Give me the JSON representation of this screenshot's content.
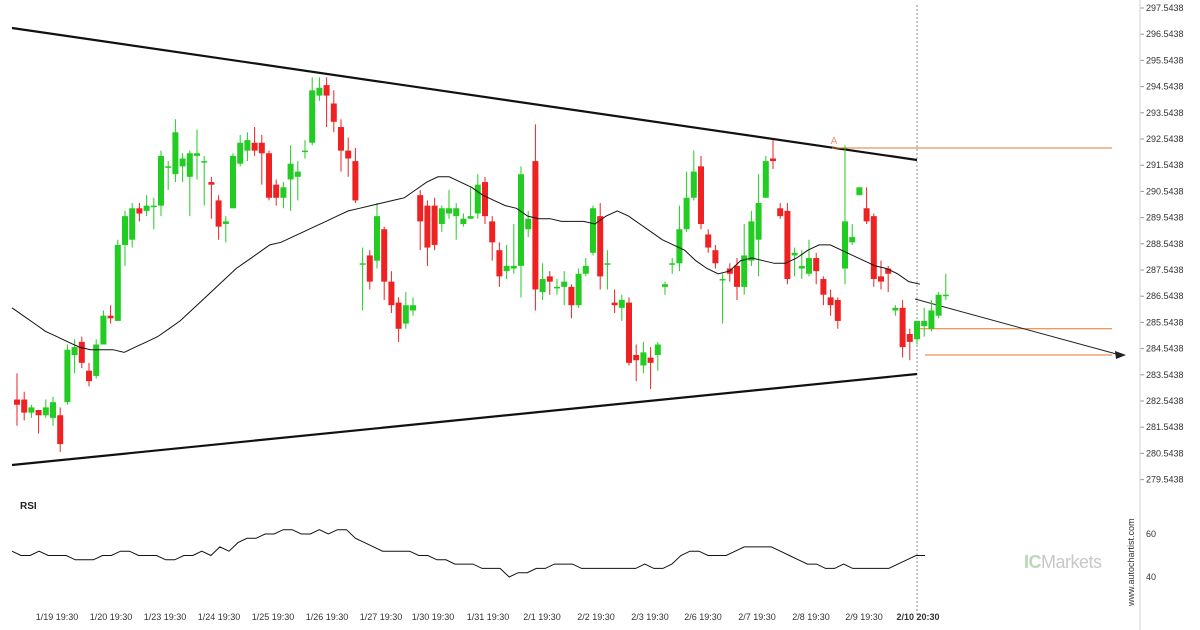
{
  "chart_data": {
    "type": "candlestick",
    "y_ticks": [
      "297.5438",
      "296.5438",
      "295.5438",
      "294.5438",
      "293.5438",
      "292.5438",
      "291.5438",
      "290.5438",
      "289.5438",
      "288.5438",
      "287.5438",
      "286.5438",
      "285.5438",
      "284.5438",
      "283.5438",
      "282.5438",
      "281.5438",
      "280.5438",
      "279.5438"
    ],
    "ylim": [
      279.0438,
      297.5438
    ],
    "x_ticks": [
      "1/19 19:30",
      "1/20 19:30",
      "1/23 19:30",
      "1/24 19:30",
      "1/25 19:30",
      "1/26 19:30",
      "1/27 19:30",
      "1/30 19:30",
      "1/31 19:30",
      "2/1 19:30",
      "2/2 19:30",
      "2/3 19:30",
      "2/6 19:30",
      "2/7 19:30",
      "2/8 19:30",
      "2/9 19:30",
      "2/10 20:30"
    ],
    "bull_color": "#22cc22",
    "bear_color": "#ee2222",
    "candles": [
      [
        282.6,
        282.4,
        283.6,
        281.6
      ],
      [
        282.6,
        282.1,
        282.9,
        281.8
      ],
      [
        282.1,
        282.3,
        282.4,
        281.9
      ],
      [
        282.2,
        282.0,
        282.2,
        281.3
      ],
      [
        282.0,
        282.3,
        282.6,
        281.9
      ],
      [
        281.9,
        282.5,
        282.7,
        281.6
      ],
      [
        282.0,
        280.9,
        282.3,
        280.6
      ],
      [
        282.5,
        284.5,
        284.7,
        282.4
      ],
      [
        284.3,
        284.6,
        284.9,
        283.6
      ],
      [
        284.8,
        284.0,
        285.0,
        283.8
      ],
      [
        283.7,
        283.3,
        284.0,
        283.1
      ],
      [
        283.5,
        284.7,
        284.9,
        283.4
      ],
      [
        284.7,
        285.8,
        286.0,
        284.7
      ],
      [
        285.8,
        285.7,
        286.2,
        285.5
      ],
      [
        285.6,
        288.5,
        288.7,
        285.6
      ],
      [
        288.5,
        289.6,
        289.8,
        287.7
      ],
      [
        288.7,
        289.9,
        290.1,
        288.4
      ],
      [
        289.9,
        289.7,
        290.1,
        289.4
      ],
      [
        289.8,
        290.0,
        290.4,
        289.6
      ],
      [
        290.0,
        290.0,
        290.3,
        289.1
      ],
      [
        290.0,
        291.9,
        292.1,
        289.6
      ],
      [
        291.5,
        291.5,
        291.7,
        290.6
      ],
      [
        291.2,
        292.8,
        293.3,
        290.9
      ],
      [
        291.5,
        291.8,
        292.0,
        290.9
      ],
      [
        291.1,
        292.0,
        292.1,
        289.6
      ],
      [
        291.9,
        292.0,
        292.9,
        291.0
      ],
      [
        291.7,
        291.7,
        291.9,
        290.0
      ],
      [
        290.9,
        290.8,
        291.1,
        289.5
      ],
      [
        290.2,
        289.2,
        290.4,
        288.7
      ],
      [
        289.3,
        289.4,
        289.6,
        288.6
      ],
      [
        289.9,
        291.9,
        292.0,
        289.9
      ],
      [
        291.6,
        292.4,
        292.7,
        291.5
      ],
      [
        292.1,
        292.5,
        292.8,
        291.7
      ],
      [
        292.4,
        292.1,
        293.0,
        291.9
      ],
      [
        292.4,
        292.0,
        292.7,
        290.8
      ],
      [
        292.0,
        290.3,
        292.1,
        290.2
      ],
      [
        290.8,
        290.3,
        291.0,
        290.0
      ],
      [
        290.3,
        290.7,
        290.9,
        289.9
      ],
      [
        291.0,
        291.6,
        292.3,
        289.8
      ],
      [
        291.1,
        291.3,
        291.7,
        290.2
      ],
      [
        292.1,
        292.1,
        292.5,
        291.8
      ],
      [
        292.4,
        294.4,
        294.9,
        292.3
      ],
      [
        294.2,
        294.5,
        294.9,
        294.0
      ],
      [
        294.6,
        294.2,
        294.9,
        293.0
      ],
      [
        293.9,
        293.2,
        294.4,
        292.8
      ],
      [
        293.0,
        292.1,
        293.3,
        291.3
      ],
      [
        292.1,
        291.8,
        292.6,
        291.1
      ],
      [
        291.7,
        290.2,
        292.2,
        290.1
      ],
      [
        287.8,
        287.8,
        288.4,
        286.0
      ],
      [
        288.1,
        287.1,
        288.3,
        286.8
      ],
      [
        287.9,
        289.6,
        290.1,
        287.6
      ],
      [
        289.1,
        287.1,
        289.2,
        286.4
      ],
      [
        287.1,
        286.2,
        287.5,
        285.9
      ],
      [
        286.3,
        285.3,
        286.5,
        284.8
      ],
      [
        285.5,
        286.2,
        286.7,
        285.3
      ],
      [
        286.0,
        286.2,
        286.5,
        285.8
      ],
      [
        290.4,
        289.4,
        290.6,
        288.3
      ],
      [
        290.0,
        288.4,
        290.2,
        287.7
      ],
      [
        290.0,
        288.5,
        290.3,
        288.3
      ],
      [
        289.3,
        289.9,
        290.0,
        289.0
      ],
      [
        289.7,
        289.9,
        290.6,
        289.5
      ],
      [
        289.6,
        289.9,
        290.1,
        288.7
      ],
      [
        289.3,
        289.5,
        289.7,
        289.2
      ],
      [
        289.5,
        289.6,
        290.7,
        289.5
      ],
      [
        289.7,
        290.8,
        291.2,
        289.5
      ],
      [
        290.9,
        289.6,
        291.1,
        289.3
      ],
      [
        289.4,
        288.6,
        289.6,
        287.9
      ],
      [
        288.3,
        287.3,
        288.6,
        286.9
      ],
      [
        287.5,
        287.7,
        288.5,
        287.2
      ],
      [
        287.6,
        287.7,
        289.3,
        287.4
      ],
      [
        287.7,
        291.2,
        291.5,
        286.5
      ],
      [
        289.1,
        289.5,
        289.8,
        288.8
      ],
      [
        291.7,
        286.8,
        293.1,
        286.0
      ],
      [
        286.7,
        287.2,
        287.8,
        286.4
      ],
      [
        287.3,
        287.1,
        287.5,
        286.6
      ],
      [
        286.9,
        286.9,
        287.2,
        286.6
      ],
      [
        286.9,
        287.1,
        287.5,
        286.2
      ],
      [
        286.9,
        286.2,
        287.0,
        285.7
      ],
      [
        286.2,
        287.4,
        287.6,
        286.1
      ],
      [
        287.4,
        287.7,
        288.0,
        287.3
      ],
      [
        288.2,
        289.9,
        290.0,
        288.1
      ],
      [
        289.6,
        287.3,
        290.1,
        286.8
      ],
      [
        287.8,
        287.8,
        288.3,
        286.8
      ],
      [
        286.3,
        286.2,
        286.8,
        285.9
      ],
      [
        286.1,
        286.4,
        286.6,
        285.6
      ],
      [
        286.3,
        284.0,
        286.5,
        283.9
      ],
      [
        284.3,
        284.1,
        284.7,
        283.3
      ],
      [
        283.9,
        284.4,
        284.8,
        283.6
      ],
      [
        284.2,
        284.0,
        284.6,
        283.0
      ],
      [
        284.3,
        284.7,
        284.8,
        283.7
      ],
      [
        286.9,
        287.0,
        287.1,
        286.6
      ],
      [
        287.8,
        287.8,
        288.0,
        287.4
      ],
      [
        287.8,
        289.1,
        290.0,
        287.5
      ],
      [
        289.1,
        290.3,
        291.3,
        289.0
      ],
      [
        290.3,
        291.3,
        292.1,
        290.2
      ],
      [
        291.5,
        289.3,
        291.9,
        289.1
      ],
      [
        288.9,
        288.4,
        289.1,
        288.2
      ],
      [
        288.3,
        287.8,
        288.5,
        287.6
      ],
      [
        287.2,
        287.2,
        287.4,
        285.5
      ],
      [
        287.6,
        287.4,
        287.8,
        287.1
      ],
      [
        287.7,
        286.9,
        288.0,
        286.4
      ],
      [
        286.9,
        288.1,
        289.3,
        286.6
      ],
      [
        287.9,
        289.4,
        289.8,
        287.7
      ],
      [
        288.7,
        290.1,
        291.2,
        287.3
      ],
      [
        290.3,
        291.7,
        291.9,
        290.3
      ],
      [
        291.8,
        291.7,
        292.5,
        291.4
      ],
      [
        289.9,
        289.6,
        290.1,
        289.5
      ],
      [
        289.8,
        287.2,
        290.1,
        287.0
      ],
      [
        288.1,
        288.2,
        288.4,
        287.3
      ],
      [
        287.6,
        287.7,
        288.3,
        287.2
      ],
      [
        287.4,
        288.0,
        288.7,
        287.3
      ],
      [
        288.0,
        287.5,
        288.2,
        287.0
      ],
      [
        287.2,
        286.6,
        287.3,
        286.2
      ],
      [
        286.5,
        286.2,
        286.8,
        285.8
      ],
      [
        286.4,
        285.6,
        286.5,
        285.3
      ],
      [
        287.6,
        289.4,
        292.3,
        287.0
      ],
      [
        288.6,
        288.8,
        289.3,
        288.5
      ],
      [
        290.4,
        290.7,
        290.7,
        290.5
      ],
      [
        289.9,
        289.4,
        290.7,
        289.3
      ],
      [
        289.6,
        287.2,
        289.7,
        286.9
      ],
      [
        287.3,
        287.1,
        287.9,
        286.8
      ],
      [
        287.6,
        287.4,
        287.7,
        286.7
      ],
      [
        286.0,
        286.1,
        286.2,
        285.8
      ],
      [
        286.1,
        284.6,
        286.4,
        284.2
      ],
      [
        285.1,
        284.8,
        285.3,
        284.1
      ],
      [
        284.9,
        285.6,
        285.6,
        284.7
      ],
      [
        285.4,
        285.6,
        286.1,
        285.0
      ],
      [
        285.3,
        286.0,
        286.4,
        285.2
      ],
      [
        285.8,
        286.6,
        286.7,
        285.7
      ],
      [
        286.6,
        286.6,
        287.4,
        286.4
      ]
    ],
    "ma_points": [
      [
        286.1,
        285.8,
        285.5,
        285.2,
        285.0,
        284.8,
        284.6,
        284.5,
        284.5,
        284.5,
        284.4,
        284.6,
        284.8,
        285.0,
        285.3,
        285.6,
        286.0,
        286.4,
        286.8,
        287.2,
        287.6,
        287.9,
        288.2,
        288.5,
        288.6,
        288.8,
        289.0,
        289.2,
        289.4,
        289.6,
        289.8,
        289.9,
        290.0,
        290.1,
        290.2,
        290.3,
        290.6,
        290.9,
        291.1,
        291.1,
        290.9,
        290.7,
        290.4,
        290.2,
        290.0,
        289.9,
        289.6,
        289.5,
        289.5,
        289.4,
        289.4,
        289.4,
        289.3,
        289.6,
        289.8,
        289.6,
        289.3,
        289.0,
        288.7,
        288.5,
        288.3,
        287.9,
        287.6,
        287.4,
        287.5,
        287.9,
        288.0,
        287.9,
        287.8,
        287.8,
        288.0,
        288.3,
        288.5,
        288.5,
        288.3,
        288.1,
        287.9,
        287.7,
        287.6,
        287.4,
        287.1,
        287.0
      ]
    ],
    "annotations": {
      "point_label": "A",
      "resistance_line": [
        292.2
      ],
      "support_line": [
        283.5
      ],
      "horizontal_levels": [
        292.2,
        285.3,
        284.3
      ]
    },
    "rsi": {
      "label": "RSI",
      "ticks": [
        "60",
        "40"
      ],
      "ylim": [
        30,
        70
      ],
      "values": [
        52,
        50,
        50,
        52,
        50,
        50,
        50,
        48,
        48,
        48,
        50,
        50,
        52,
        52,
        50,
        50,
        50,
        48,
        48,
        50,
        50,
        52,
        50,
        54,
        52,
        56,
        58,
        58,
        60,
        60,
        62,
        62,
        60,
        60,
        62,
        60,
        62,
        62,
        58,
        56,
        54,
        52,
        52,
        52,
        52,
        50,
        50,
        48,
        48,
        46,
        46,
        46,
        44,
        44,
        44,
        40,
        42,
        42,
        44,
        44,
        46,
        46,
        46,
        44,
        44,
        44,
        44,
        44,
        44,
        44,
        46,
        44,
        44,
        46,
        50,
        52,
        52,
        50,
        50,
        50,
        52,
        54,
        54,
        54,
        54,
        52,
        50,
        48,
        46,
        46,
        44,
        44,
        46,
        44,
        44,
        44,
        44,
        44,
        46,
        48,
        50,
        50
      ]
    }
  },
  "branding": {
    "ic": "IC",
    "markets": "Markets",
    "watermark": "www.autochartist.com"
  }
}
